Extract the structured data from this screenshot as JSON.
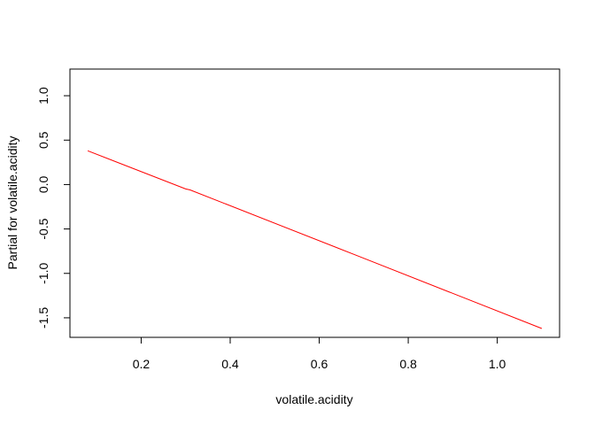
{
  "chart_data": {
    "type": "line",
    "title": "",
    "xlabel": "volatile.acidity",
    "ylabel": "Partial for volatile.acidity",
    "xlim": [
      0.04,
      1.14
    ],
    "ylim": [
      -1.72,
      1.3
    ],
    "xticks": [
      0.2,
      0.4,
      0.6,
      0.8,
      1.0
    ],
    "xtick_labels": [
      "0.2",
      "0.4",
      "0.6",
      "0.8",
      "1.0"
    ],
    "yticks": [
      -1.5,
      -1.0,
      -0.5,
      0.0,
      0.5,
      1.0
    ],
    "ytick_labels": [
      "-1.5",
      "-1.0",
      "-0.5",
      "0.0",
      "0.5",
      "1.0"
    ],
    "grid": false,
    "series": [
      {
        "color": "#ff0000",
        "x": [
          0.08,
          0.3,
          0.31,
          0.68,
          0.69,
          1.1
        ],
        "y": [
          0.38,
          -0.05,
          -0.06,
          -0.79,
          -0.81,
          -1.62
        ]
      }
    ]
  }
}
